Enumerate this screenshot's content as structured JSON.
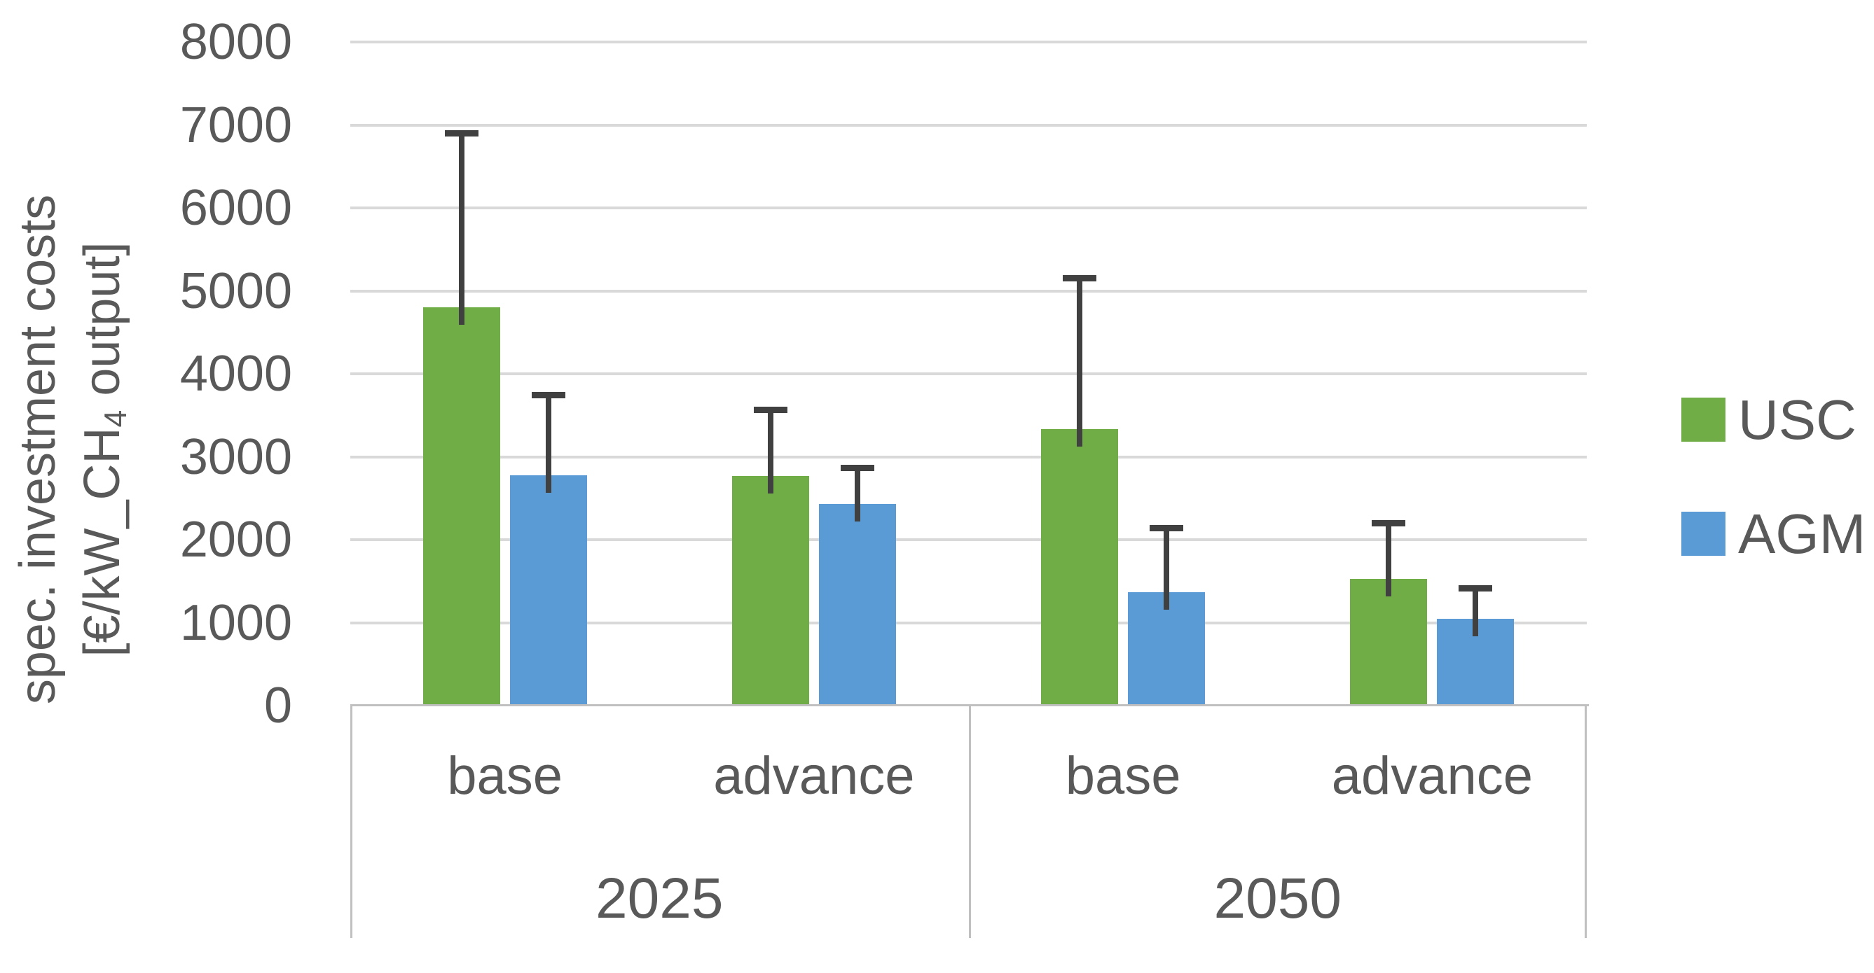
{
  "chart_data": {
    "type": "bar",
    "title": "",
    "y_axis_title_line1": "spec. investment costs",
    "y_axis_title_line2_pre": "[€/kW_CH",
    "y_axis_title_line2_sub": "4",
    "y_axis_title_line2_post": " output]",
    "ylim": [
      0,
      8000
    ],
    "ytick_step": 1000,
    "yticks": [
      8000,
      7000,
      6000,
      5000,
      4000,
      3000,
      2000,
      1000,
      0
    ],
    "grid": true,
    "legend_position": "right",
    "categories": [
      "base",
      "advance",
      "base",
      "advance"
    ],
    "group_labels": [
      "2025",
      "2050"
    ],
    "series": [
      {
        "name": "USC",
        "color": "#70AD47",
        "values": [
          4800,
          2770,
          3330,
          1530
        ],
        "error_upper": [
          2140,
          830,
          1860,
          710
        ]
      },
      {
        "name": "AGM",
        "color": "#5B9BD5",
        "values": [
          2780,
          2430,
          1370,
          1050
        ],
        "error_upper": [
          1000,
          470,
          810,
          400
        ]
      }
    ],
    "colors": {
      "gridline": "#d9d9d9",
      "axis_line": "#c0c0c0",
      "error_bar": "#404040",
      "text": "#595959"
    }
  }
}
